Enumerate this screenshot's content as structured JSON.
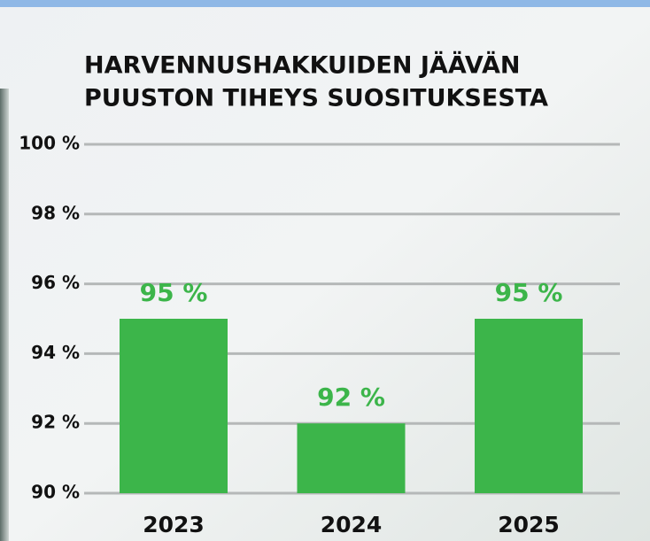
{
  "chart_data": {
    "type": "bar",
    "title_lines": [
      "HARVENNUSHAKKUIDEN JÄÄVÄN",
      "PUUSTON TIHEYS SUOSITUKSESTA"
    ],
    "categories": [
      "2023",
      "2024",
      "2025"
    ],
    "values": [
      95,
      92,
      95
    ],
    "value_labels": [
      "95 %",
      "92 %",
      "95 %"
    ],
    "color": "#3cb54a",
    "ylim": [
      90,
      100
    ],
    "yticks": [
      {
        "value": 90,
        "label": "90 %"
      },
      {
        "value": 92,
        "label": "92 %"
      },
      {
        "value": 94,
        "label": "94 %"
      },
      {
        "value": 96,
        "label": "96 %"
      },
      {
        "value": 98,
        "label": "98 %"
      },
      {
        "value": 100,
        "label": "100 %"
      }
    ],
    "grid": true
  }
}
